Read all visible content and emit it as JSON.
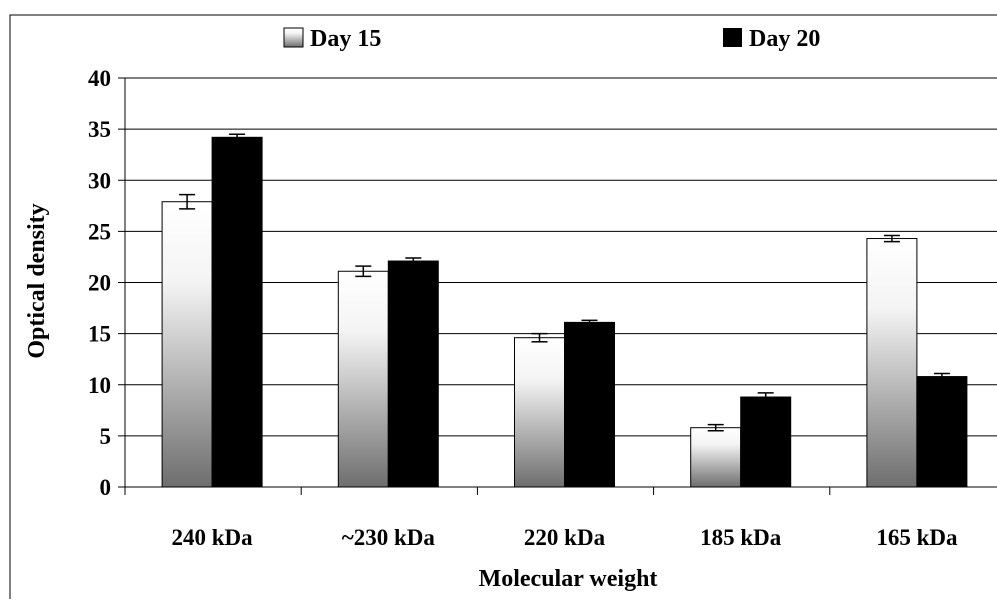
{
  "chart_data": {
    "type": "bar",
    "categories": [
      "240 kDa",
      "~230 kDa",
      "220 kDa",
      "185 kDa",
      "165 kDa"
    ],
    "series": [
      {
        "name": "Day 15",
        "values": [
          27.9,
          21.1,
          14.6,
          5.8,
          24.3
        ],
        "errors": [
          0.7,
          0.5,
          0.4,
          0.3,
          0.3
        ],
        "style": "gradient"
      },
      {
        "name": "Day 20",
        "values": [
          34.2,
          22.1,
          16.1,
          8.8,
          10.8
        ],
        "errors": [
          0.3,
          0.3,
          0.2,
          0.4,
          0.3
        ],
        "style": "solid"
      }
    ],
    "title": "",
    "xlabel": "Molecular weight",
    "ylabel": "Optical density",
    "ylim": [
      0,
      40
    ],
    "yticks": [
      "0",
      "5",
      "10",
      "15",
      "20",
      "25",
      "30",
      "35",
      "40"
    ],
    "grid": true,
    "legend_position": "top"
  },
  "colors": {
    "day20_fill": "#000000",
    "gradient_top": "#ffffff",
    "gradient_bottom": "#6e6e6e",
    "gridline": "#000000"
  }
}
